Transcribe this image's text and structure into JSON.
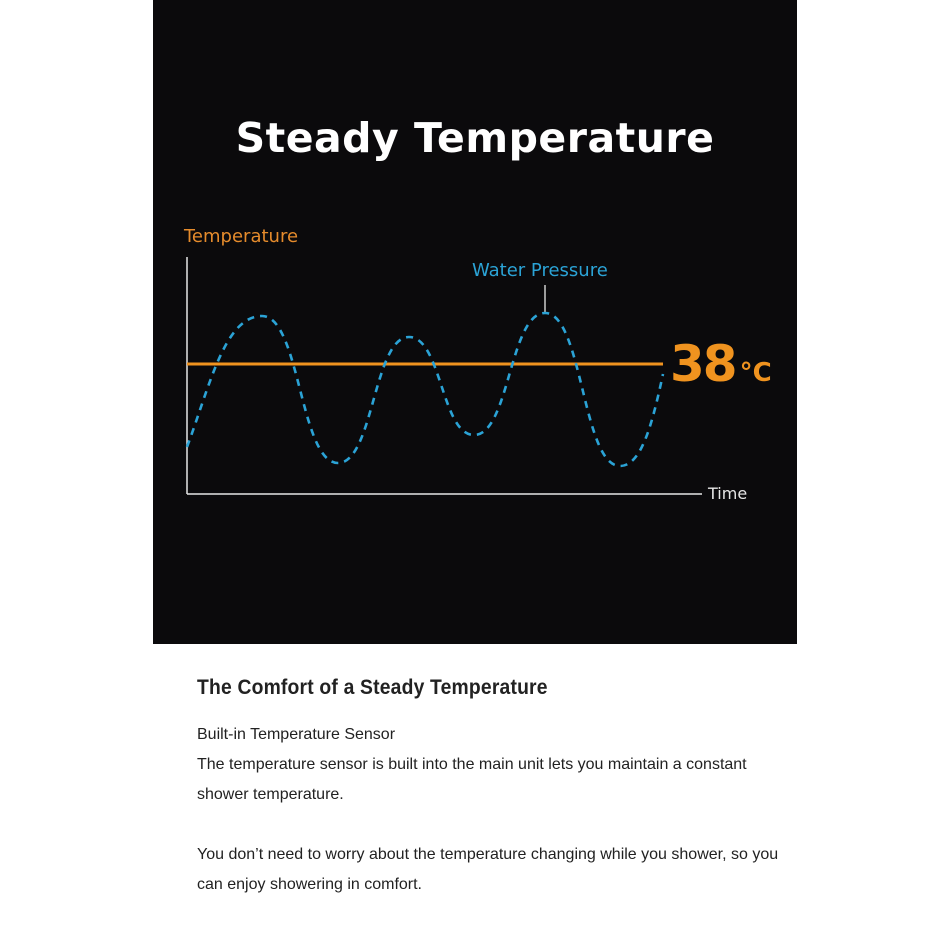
{
  "hero": {
    "title": "Steady Temperature",
    "y_axis_label": "Temperature",
    "x_axis_label": "Time",
    "series_label": "Water Pressure",
    "temperature_value": "38",
    "temperature_unit": "°C",
    "colors": {
      "background": "#0b0a0c",
      "temperature": "#f0931f",
      "water_pressure": "#2ba3d6",
      "axis": "#e6e6e6"
    }
  },
  "content": {
    "heading": "The Comfort of a Steady Temperature",
    "subheading": "Built-in Temperature Sensor",
    "paragraph1": "The temperature sensor is built into the main unit lets you maintain a constant shower temperature.",
    "paragraph2": "You don’t need to worry about the temperature changing while you shower, so you can enjoy showering in comfort."
  }
}
